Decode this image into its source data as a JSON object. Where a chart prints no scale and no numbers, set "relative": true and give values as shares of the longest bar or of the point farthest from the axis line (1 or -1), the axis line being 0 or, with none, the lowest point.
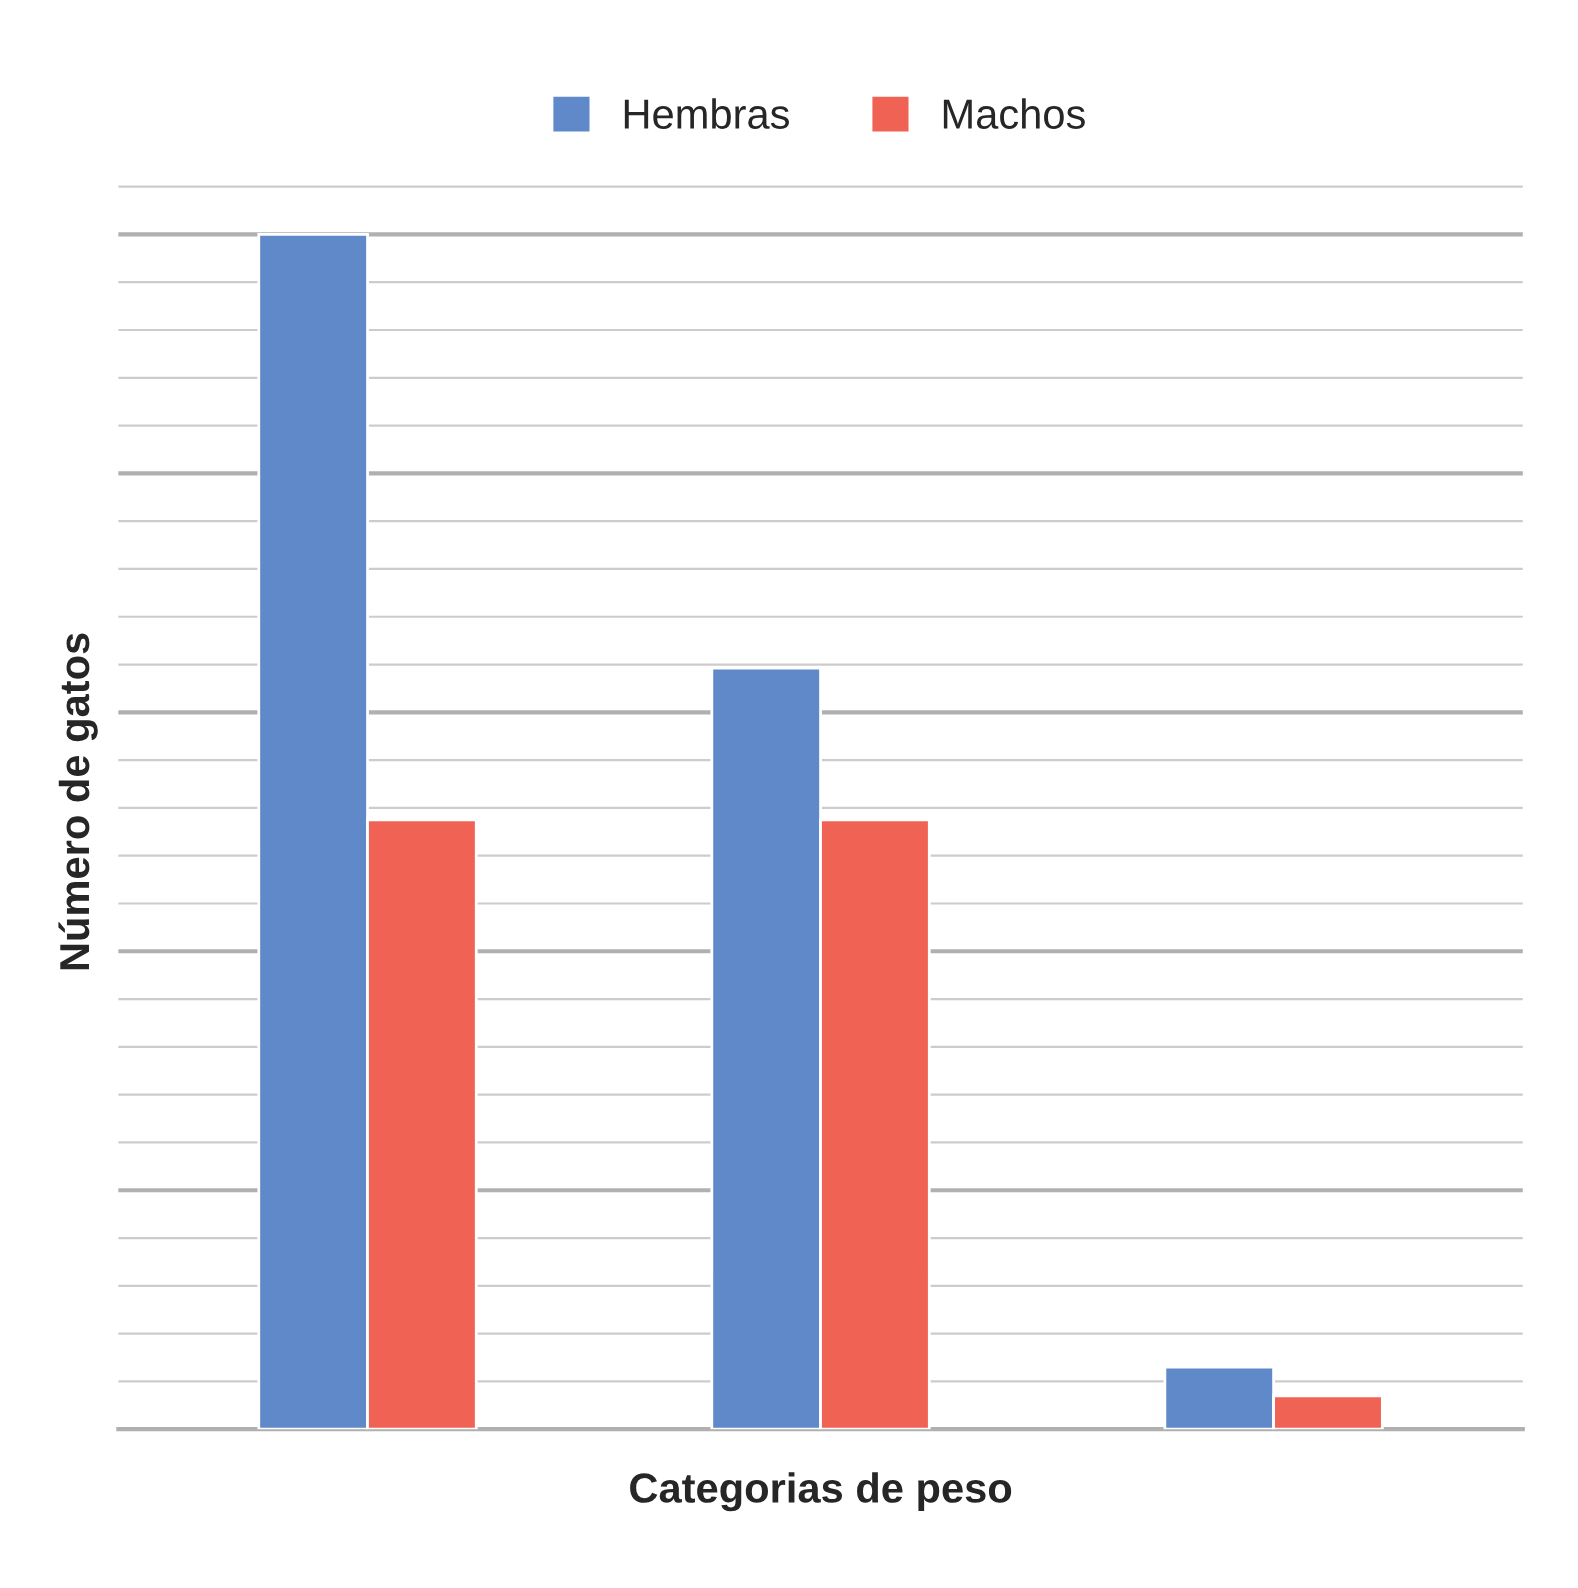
{
  "chart_data": {
    "type": "bar",
    "xlabel": "Categorias de peso",
    "ylabel": "Número de gatos",
    "categories": [
      null,
      null,
      null
    ],
    "relative": true,
    "series": [
      {
        "name": "Hembras",
        "color": "#5f89c8",
        "values": [
          1,
          0.637,
          0.052
        ]
      },
      {
        "name": "Machos",
        "color": "#ef6254",
        "values": [
          0.51,
          0.51,
          0.028
        ]
      }
    ],
    "grid": "y",
    "legend": "top"
  }
}
